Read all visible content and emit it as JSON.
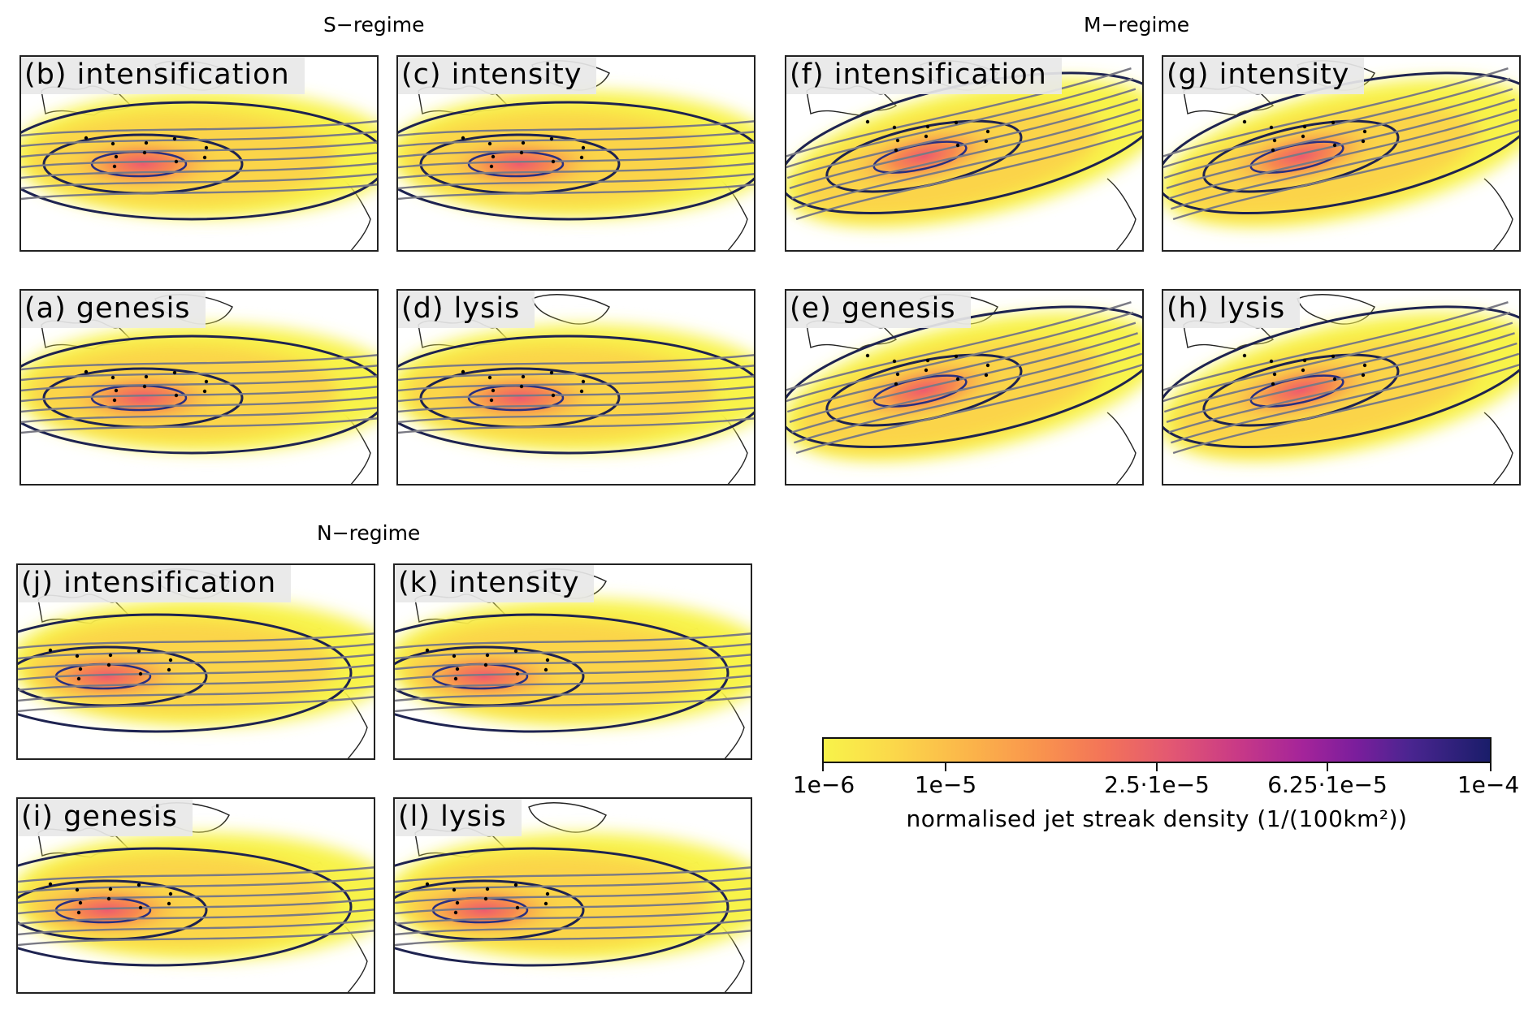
{
  "regimes": {
    "s": "S−regime",
    "m": "M−regime",
    "n": "N−regime"
  },
  "panels": {
    "b": "(b) intensification",
    "c": "(c) intensity",
    "a": "(a) genesis",
    "d": "(d) lysis",
    "f": "(f) intensification",
    "g": "(g) intensity",
    "e": "(e) genesis",
    "h": "(h) lysis",
    "j": "(j) intensification",
    "k": "(k) intensity",
    "i": "(i) genesis",
    "l": "(l) lysis"
  },
  "colorbar": {
    "ticks": [
      "1e−6",
      "1e−5",
      "2.5·1e−5",
      "6.25·1e−5",
      "1e−4"
    ],
    "label": "normalised jet streak density (1/(100km²))",
    "colors": [
      "#f8f34a",
      "#f9954d",
      "#e35872",
      "#a4249a",
      "#1a1d6a"
    ]
  }
}
